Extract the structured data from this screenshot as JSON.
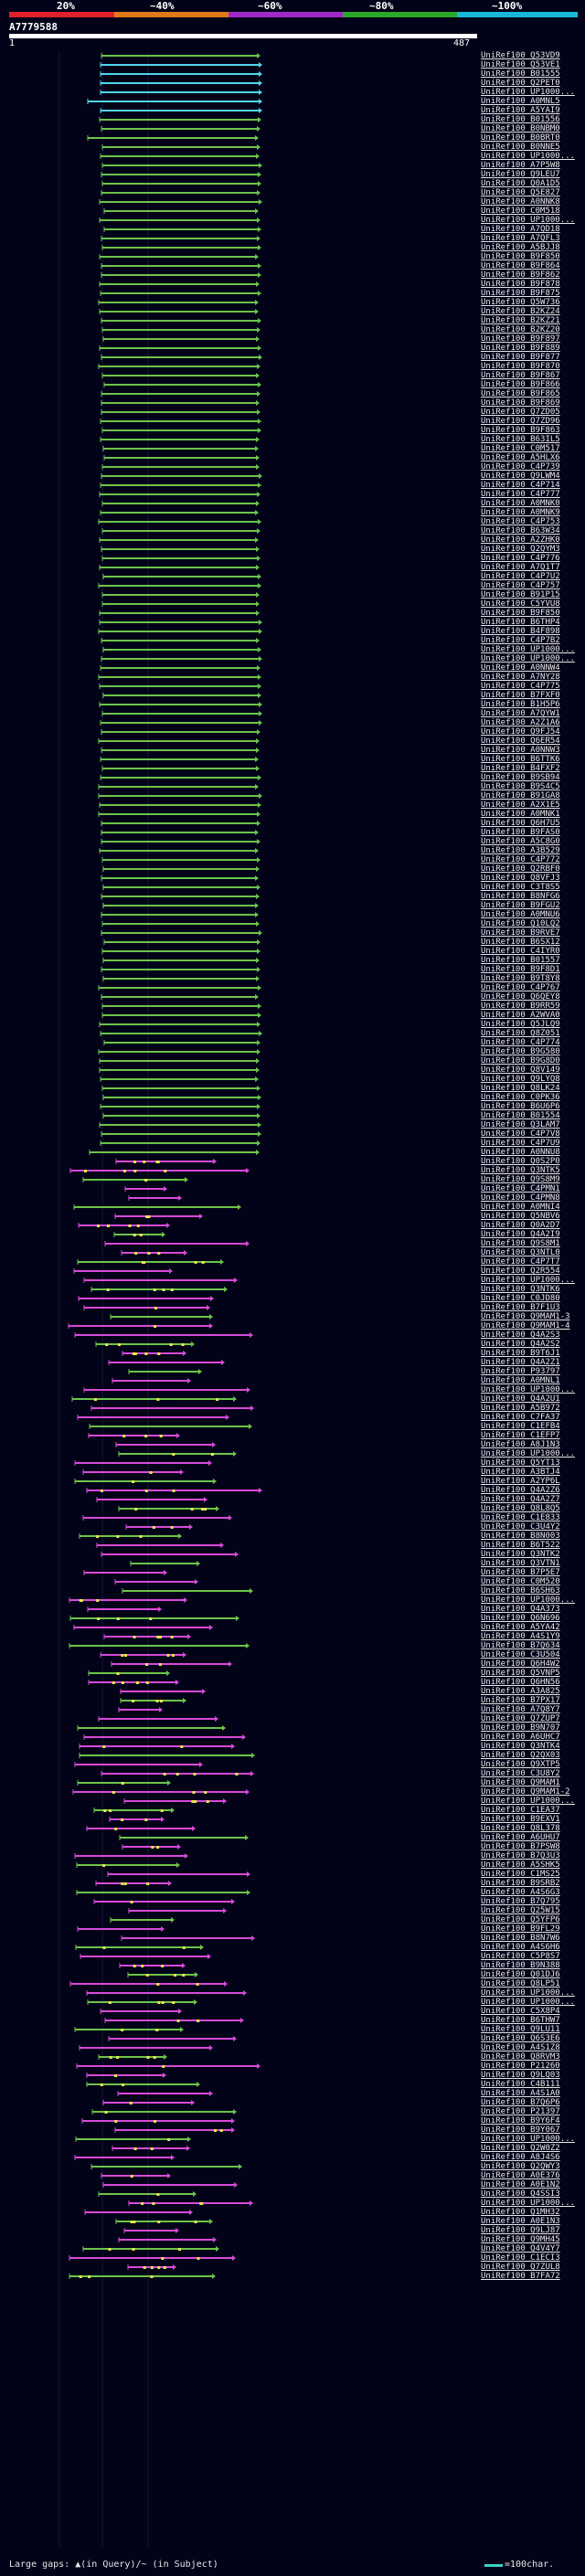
{
  "legend": {
    "labels": [
      "20%",
      "~40%",
      "~60%",
      "~80%",
      "~100%"
    ],
    "colors": [
      "#e0202a",
      "#e07818",
      "#a028c8",
      "#28a828",
      "#18b8d8"
    ]
  },
  "query": {
    "id": "A7779588",
    "start": "1",
    "end": "487"
  },
  "colors": {
    "cyan": "#4fd6ea",
    "green": "#6cc44a",
    "magenta": "#d84ad8",
    "yellow": "#e8e850",
    "guide": "#16163a"
  },
  "hits": [
    "UniRef100_Q53VD9",
    "UniRef100_Q53VE1",
    "UniRef100_B01555",
    "UniRef100_Q2PET0",
    "UniRef100_UP1000...",
    "UniRef100_A0MNL5",
    "UniRef100_A5YAI9",
    "UniRef100_B01556",
    "UniRef100_B0NBM0",
    "UniRef100_B0BRT0",
    "UniRef100_B0NNE5",
    "UniRef100_UP1000...",
    "UniRef100_A7P5W8",
    "UniRef100_Q9LEU7",
    "UniRef100_Q0A1D5",
    "UniRef100_Q5E827",
    "UniRef100_A0NNK8",
    "UniRef100_C0M518",
    "UniRef100_UP1000...",
    "UniRef100_A7QD18",
    "UniRef100_A7QFL3",
    "UniRef100_A5BJJ8",
    "UniRef100_B9F850",
    "UniRef100_B9F864",
    "UniRef100_B9F862",
    "UniRef100_B9F878",
    "UniRef100_B9F875",
    "UniRef100_Q5W736",
    "UniRef100_B2KZ24",
    "UniRef100_B2KZ21",
    "UniRef100_B2KZ20",
    "UniRef100_B9F897",
    "UniRef100_B9F889",
    "UniRef100_B9F877",
    "UniRef100_B9F870",
    "UniRef100_B9F867",
    "UniRef100_B9F866",
    "UniRef100_B9F865",
    "UniRef100_B9F869",
    "UniRef100_Q7ZD05",
    "UniRef100_Q7ZD96",
    "UniRef100_B9F863",
    "UniRef100_B63IL5",
    "UniRef100_C0M517",
    "UniRef100_A5HLX6",
    "UniRef100_C4P739",
    "UniRef100_Q9LWM4",
    "UniRef100_C4P714",
    "UniRef100_C4P777",
    "UniRef100_A0MNK0",
    "UniRef100_A0MNK9",
    "UniRef100_C4P753",
    "UniRef100_B63W34",
    "UniRef100_A2ZHK0",
    "UniRef100_Q2QYM3",
    "UniRef100_C4P776",
    "UniRef100_A7Q1T7",
    "UniRef100_C4P7U2",
    "UniRef100_C4P757",
    "UniRef100_B91P15",
    "UniRef100_C5YVU8",
    "UniRef100_B9F850",
    "UniRef100_B6THP4",
    "UniRef100_B4F898",
    "UniRef100_C4P7B2",
    "UniRef100_UP1000...",
    "UniRef100_UP1000...",
    "UniRef100_A0NNW4",
    "UniRef100_A7NY28",
    "UniRef100_C4P775",
    "UniRef100_B7FXF0",
    "UniRef100_B1H5P6",
    "UniRef100_A7QYW1",
    "UniRef100_A2Z1A6",
    "UniRef100_Q9FJ54",
    "UniRef100_Q6ER54",
    "UniRef100_A0NNW3",
    "UniRef100_B6TTK6",
    "UniRef100_B4FXF2",
    "UniRef100_B9SB94",
    "UniRef100_B9S4C5",
    "UniRef100_B91GA8",
    "UniRef100_A2X1E5",
    "UniRef100_A0MNK1",
    "UniRef100_Q6H7U5",
    "UniRef100_B9FAS0",
    "UniRef100_A5C8G0",
    "UniRef100_A3B529",
    "UniRef100_C4P772",
    "UniRef100_Q2RBF0",
    "UniRef100_Q8VFJ3",
    "UniRef100_C3T8S5",
    "UniRef100_B8NFG6",
    "UniRef100_B9FGU2",
    "UniRef100_A0MNU6",
    "UniRef100_Q10LQ2",
    "UniRef100_B9RVE7",
    "UniRef100_B6SX12",
    "UniRef100_C4IYR0",
    "UniRef100_B01557",
    "UniRef100_B9F8D1",
    "UniRef100_B9T8Y8",
    "UniRef100_C4P767",
    "UniRef100_Q6QEY8",
    "UniRef100_B9RR59",
    "UniRef100_A2WVA0",
    "UniRef100_Q5JLQ9",
    "UniRef100_Q8Z051",
    "UniRef100_C4P774",
    "UniRef100_B9G580",
    "UniRef100_B9G8D0",
    "UniRef100_Q8V149",
    "UniRef100_Q9LYQ8",
    "UniRef100_Q8LK24",
    "UniRef100_C0PK36",
    "UniRef100_B6U6P6",
    "UniRef100_B01554",
    "UniRef100_Q3LAM7",
    "UniRef100_C4P7V8",
    "UniRef100_C4P7U9",
    "UniRef100_A0NNU8",
    "UniRef100_Q0S2P0",
    "UniRef100_Q3NTK5",
    "UniRef100_Q9S8M9",
    "UniRef100_C4PMN1",
    "UniRef100_C4PMN8",
    "UniRef100_A0MNI4",
    "UniRef100_Q5NBV6",
    "UniRef100_Q0A2D7",
    "UniRef100_Q4A2I9",
    "UniRef100_Q9S8M1",
    "UniRef100_Q3NTL0",
    "UniRef100_C4P7T7",
    "UniRef100_Q2R554",
    "UniRef100_UP1000...",
    "UniRef100_Q3NTK6",
    "UniRef100_C0JD80",
    "UniRef100_B7F1U3",
    "UniRef100_Q9MAM1-3",
    "UniRef100_Q9MAM1-4",
    "UniRef100_Q4A2S3",
    "UniRef100_Q4A2S2",
    "UniRef100_B9T6J1",
    "UniRef100_Q4A2Z1",
    "UniRef100_P93797",
    "UniRef100_A0MNL1",
    "UniRef100_UP1000...",
    "UniRef100_Q4A2U1",
    "UniRef100_A5B972",
    "UniRef100_C7FA37",
    "UniRef100_C1EFB4",
    "UniRef100_C1EFP7",
    "UniRef100_A8J1N3",
    "UniRef100_UP1000...",
    "UniRef100_Q5YT13",
    "UniRef100_A3BTJ4",
    "UniRef100_A2YP6L",
    "UniRef100_Q4A2Z6",
    "UniRef100_Q4A2Z7",
    "UniRef100_Q8L8Q5",
    "UniRef100_C1E833",
    "UniRef100_C3U4Y2",
    "UniRef100_B8N003",
    "UniRef100_B6T522",
    "UniRef100_Q3NTK2",
    "UniRef100_Q3VTN1",
    "UniRef100_B7P5E7",
    "UniRef100_C0M520",
    "UniRef100_B6SH63",
    "UniRef100_UP1000...",
    "UniRef100_Q4A373",
    "UniRef100_Q6N696",
    "UniRef100_A5YA42",
    "UniRef100_A4S1Y9",
    "UniRef100_B7Q634",
    "UniRef100_C3U504",
    "UniRef100_Q6H4W2",
    "UniRef100_Q5VNP5",
    "UniRef100_Q6HN56",
    "UniRef100_A3A825",
    "UniRef100_B7PX17",
    "UniRef100_A7Q8Y7",
    "UniRef100_Q7ZUP7",
    "UniRef100_B9N707",
    "UniRef100_A6UHC7",
    "UniRef100_Q3NTK4",
    "UniRef100_Q2QX03",
    "UniRef100_Q9XTP5",
    "UniRef100_C3U8Y2",
    "UniRef100_Q9MAM1",
    "UniRef100_Q9MAM1-2",
    "UniRef100_UP1000...",
    "UniRef100_C1EA37",
    "UniRef100_B9EXV1",
    "UniRef100_Q8L378",
    "UniRef100_A6UHU7",
    "UniRef100_B7PSW8",
    "UniRef100_B7Q3U3",
    "UniRef100_A5SHK5",
    "UniRef100_C1MS25",
    "UniRef100_B9SRB2",
    "UniRef100_A4S6G3",
    "UniRef100_B7Q795",
    "UniRef100_Q25W15",
    "UniRef100_Q5YFP6",
    "UniRef100_B9FL29",
    "UniRef100_B8N7W6",
    "UniRef100_A4S6H6",
    "UniRef100_C5P8S7",
    "UniRef100_B9N388",
    "UniRef100_Q01DJ6",
    "UniRef100_Q8LP51",
    "UniRef100_UP1000...",
    "UniRef100_UP1000...",
    "UniRef100_C5X8P4",
    "UniRef100_B6THW7",
    "UniRef100_Q9LU11",
    "UniRef100_Q6S3E6",
    "UniRef100_A4S1Z8",
    "UniRef100_Q8RVM3",
    "UniRef100_P21260",
    "UniRef100_Q9LQ03",
    "UniRef100_C4B111",
    "UniRef100_A4S1A0",
    "UniRef100_B7Q6P6",
    "UniRef100_P21397",
    "UniRef100_B9Y6F4",
    "UniRef100_B9Y067",
    "UniRef100_UP1000...",
    "UniRef100_Q2W0Z2",
    "UniRef100_A8J4S6",
    "UniRef100_Q2QWY3",
    "UniRef100_A0E376",
    "UniRef100_A0E1N2",
    "UniRef100_Q4SSI3",
    "UniRef100_UP1000...",
    "UniRef100_Q1MH32",
    "UniRef100_A0E1N3",
    "UniRef100_Q9LJ87",
    "UniRef100_Q9MH45",
    "UniRef100_Q4V4Y7",
    "UniRef100_C1ECI3",
    "UniRef100_Q7ZUL8",
    "UniRef100_B7FA72"
  ],
  "footer": {
    "gaps_text": "Large gaps: ▲(in Query)/~ (in Subject)",
    "scale_text": "=100char."
  }
}
